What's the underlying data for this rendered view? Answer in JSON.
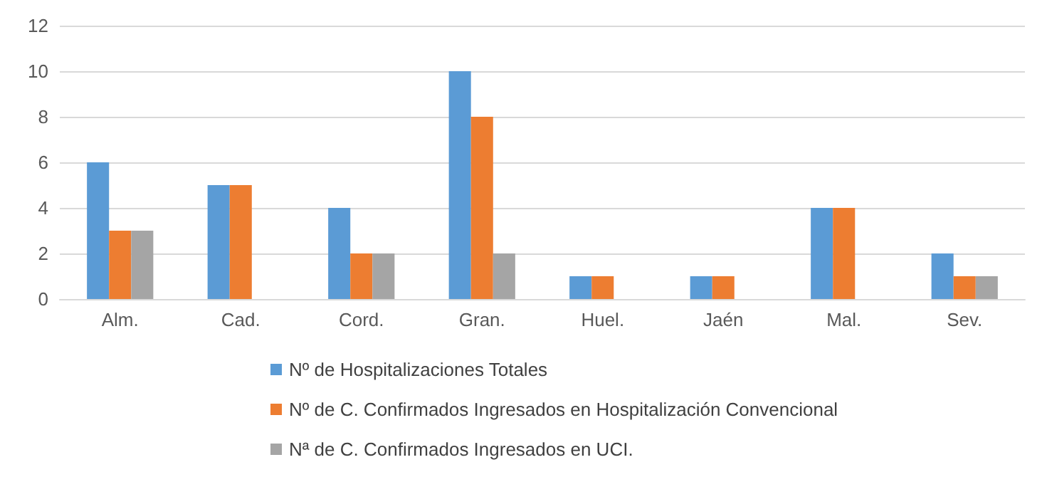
{
  "chart_data": {
    "type": "bar",
    "categories": [
      "Alm.",
      "Cad.",
      "Cord.",
      "Gran.",
      "Huel.",
      "Jaén",
      "Mal.",
      "Sev."
    ],
    "series": [
      {
        "name": "Nº de Hospitalizaciones Totales",
        "color": "#5b9bd5",
        "values": [
          6,
          5,
          4,
          10,
          1,
          1,
          4,
          2
        ]
      },
      {
        "name": "Nº de C. Confirmados Ingresados en Hospitalización Convencional",
        "color": "#ed7d31",
        "values": [
          3,
          5,
          2,
          8,
          1,
          1,
          4,
          1
        ]
      },
      {
        "name": "Nª de C. Confirmados Ingresados en UCI.",
        "color": "#a5a5a5",
        "values": [
          3,
          0,
          2,
          2,
          0,
          0,
          0,
          1
        ]
      }
    ],
    "ylim": [
      0,
      12
    ],
    "yticks": [
      0,
      2,
      4,
      6,
      8,
      10,
      12
    ],
    "grid": "y",
    "legend": "bottom"
  }
}
